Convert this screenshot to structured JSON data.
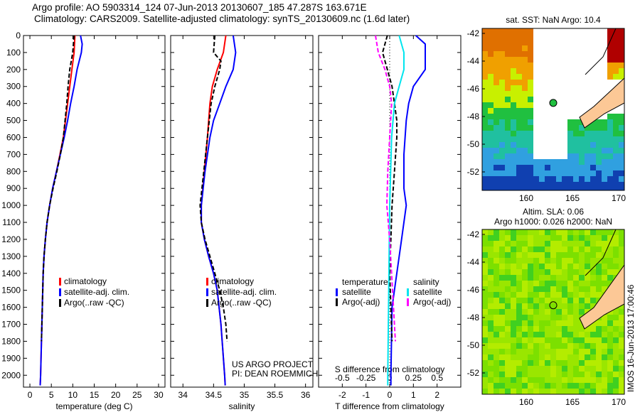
{
  "title_line1": "Argo profile: AO 5903314_124 07-Jun-2013 20130607_185 47.287S 163.671E",
  "title_line2": "Climatology: CARS2009. Satellite-adjusted climatology: synTS_20130609.nc (1.6d later)",
  "stamp": "IMOS 16-Jun-2013 17:00:46",
  "chart_data": [
    {
      "type": "line",
      "id": "temp",
      "xlabel": "temperature (deg C)",
      "xlim": [
        -1.5,
        31.5
      ],
      "ylim": [
        0,
        2070
      ],
      "reverse_y": true,
      "xticks": [
        0,
        5,
        10,
        15,
        20,
        25,
        30
      ],
      "yticks": [
        0,
        100,
        200,
        300,
        400,
        500,
        600,
        700,
        800,
        900,
        1000,
        1100,
        1200,
        1300,
        1400,
        1500,
        1600,
        1700,
        1800,
        1900,
        2000
      ],
      "legend": [
        "climatology",
        "satellite-adj. clim.",
        "Argo(..raw -QC)"
      ],
      "series": [
        {
          "name": "climatology",
          "color": "#ff0000",
          "dash": "",
          "depth": [
            0,
            100,
            200,
            300,
            400,
            500,
            600,
            700,
            800,
            900,
            1000,
            1100,
            1200,
            1300,
            1400,
            1600,
            2000,
            2060
          ],
          "values": [
            10.5,
            10.3,
            9.8,
            9.3,
            8.8,
            8.3,
            7.8,
            7.0,
            6.2,
            5.3,
            4.6,
            4.0,
            3.6,
            3.3,
            3.1,
            2.9,
            2.5,
            2.4
          ]
        },
        {
          "name": "satellite-adj. clim.",
          "color": "#0000ff",
          "dash": "",
          "depth": [
            0,
            50,
            100,
            200,
            300,
            400,
            500,
            600,
            700,
            800,
            900,
            1000,
            1100,
            1200,
            1300,
            1400,
            1600,
            2000,
            2060
          ],
          "values": [
            11.8,
            12.2,
            12.0,
            11.0,
            10.3,
            9.5,
            8.8,
            8.0,
            7.1,
            6.2,
            5.3,
            4.6,
            4.0,
            3.6,
            3.3,
            3.1,
            2.9,
            2.5,
            2.4
          ]
        },
        {
          "name": "Argo(..raw -QC)",
          "color": "#000000",
          "dash": "6,3",
          "depth": [
            0,
            100,
            200,
            300,
            400,
            500,
            600,
            700,
            800,
            900,
            1000,
            1100,
            1200,
            1300,
            1400,
            1600,
            1800
          ],
          "values": [
            10.3,
            10.0,
            9.3,
            8.9,
            8.6,
            8.2,
            7.8,
            7.1,
            6.3,
            5.4,
            4.6,
            4.0,
            3.6,
            3.3,
            3.1,
            2.9,
            2.7
          ]
        }
      ]
    },
    {
      "type": "line",
      "id": "sal",
      "xlabel": "salinity",
      "xlim": [
        33.8,
        36.12
      ],
      "ylim": [
        0,
        2070
      ],
      "reverse_y": true,
      "xticks": [
        34,
        34.5,
        35,
        35.5,
        36
      ],
      "legend": [
        "climatology",
        "satellite-adj. clim.",
        "Argo(..raw -QC)"
      ],
      "annotation": [
        "US ARGO PROJECT",
        "PI: DEAN ROEMMICH"
      ],
      "series": [
        {
          "name": "climatology",
          "color": "#ff0000",
          "dash": "",
          "depth": [
            0,
            100,
            200,
            300,
            400,
            600,
            800,
            1000,
            1100,
            1200,
            1300,
            1400,
            1500,
            1700,
            2000,
            2060
          ],
          "values": [
            34.7,
            34.66,
            34.56,
            34.48,
            34.44,
            34.4,
            34.35,
            34.3,
            34.3,
            34.35,
            34.42,
            34.5,
            34.56,
            34.62,
            34.68,
            34.69
          ]
        },
        {
          "name": "satellite-adj. clim.",
          "color": "#0000ff",
          "dash": "",
          "depth": [
            0,
            100,
            200,
            300,
            400,
            500,
            600,
            800,
            1000,
            1100,
            1200,
            1300,
            1400,
            1500,
            1700,
            2000,
            2060
          ],
          "values": [
            34.82,
            34.86,
            34.82,
            34.7,
            34.6,
            34.5,
            34.44,
            34.36,
            34.3,
            34.3,
            34.35,
            34.42,
            34.5,
            34.56,
            34.62,
            34.68,
            34.69
          ]
        },
        {
          "name": "Argo(..raw -QC)",
          "color": "#000000",
          "dash": "6,3",
          "depth": [
            0,
            100,
            150,
            200,
            300,
            400,
            600,
            800,
            1000,
            1100,
            1200,
            1300,
            1400,
            1500,
            1600,
            1700,
            1800
          ],
          "values": [
            34.52,
            34.5,
            34.62,
            34.6,
            34.52,
            34.46,
            34.4,
            34.34,
            34.28,
            34.3,
            34.36,
            34.44,
            34.52,
            34.6,
            34.66,
            34.7,
            34.72
          ]
        }
      ]
    },
    {
      "type": "line",
      "id": "diff",
      "xlabel": "T difference from climatology",
      "x2label": "S difference from climatology",
      "xlim": [
        -3,
        3
      ],
      "ylim": [
        0,
        2070
      ],
      "reverse_y": true,
      "xticks": [
        -2,
        -1,
        0,
        1,
        2
      ],
      "x2ticks": [
        -0.5,
        -0.25,
        0,
        0.25,
        0.5
      ],
      "s_scale": 4,
      "legend_left": {
        "title": "temperature",
        "items": [
          "satellite",
          "Argo(-adj)"
        ]
      },
      "legend_right": {
        "title": "salinity",
        "items": [
          "satellite",
          "Argo(-adj)"
        ]
      },
      "series": [
        {
          "name": "T satellite",
          "color": "#0000ff",
          "dash": "",
          "unit": "T",
          "depth": [
            0,
            50,
            100,
            200,
            300,
            400,
            500,
            700,
            900,
            1000,
            1200,
            1400,
            1600,
            2000,
            2060
          ],
          "values": [
            1.1,
            1.5,
            1.5,
            1.5,
            1.0,
            0.8,
            0.7,
            0.6,
            0.6,
            0.7,
            0.5,
            0.3,
            0.1,
            0.05,
            0.05
          ]
        },
        {
          "name": "T Argo(-adj)",
          "color": "#000000",
          "dash": "6,3",
          "unit": "T",
          "depth": [
            0,
            100,
            200,
            300,
            400,
            500,
            600,
            800,
            1000,
            1400,
            1800
          ],
          "values": [
            -0.1,
            -0.3,
            -0.1,
            0.1,
            0.2,
            0.3,
            0.3,
            0.2,
            0.1,
            0.0,
            0.1
          ]
        },
        {
          "name": "S satellite",
          "color": "#00e5ee",
          "dash": "",
          "unit": "S",
          "depth": [
            0,
            100,
            200,
            300,
            400,
            600,
            1000,
            2000,
            2060
          ],
          "values": [
            0.1,
            0.15,
            0.15,
            0.1,
            0.05,
            0.02,
            0,
            -0.02,
            -0.02
          ]
        },
        {
          "name": "S Argo(-adj)",
          "color": "#ff00ff",
          "dash": "6,3",
          "unit": "S",
          "depth": [
            0,
            100,
            200,
            300,
            400,
            600,
            800,
            1000,
            1200,
            1500,
            1800
          ],
          "values": [
            -0.15,
            -0.12,
            -0.05,
            0,
            0.02,
            0,
            -0.02,
            -0.03,
            0,
            0.03,
            0.06
          ]
        }
      ]
    }
  ],
  "map1": {
    "title": "sat. SST: NaN Argo: 10.4",
    "lat_ticks": [
      "-42",
      "-44",
      "-46",
      "-48",
      "-50",
      "-52"
    ],
    "lon_ticks": [
      "160",
      "165",
      "170"
    ]
  },
  "map2": {
    "title1": "Altim. SLA: 0.06",
    "title2": "Argo h1000: 0.026 h2000: NaN",
    "lat_ticks": [
      "-42",
      "-44",
      "-46",
      "-48",
      "-50",
      "-52"
    ],
    "lon_ticks": [
      "160",
      "165",
      "170"
    ]
  }
}
